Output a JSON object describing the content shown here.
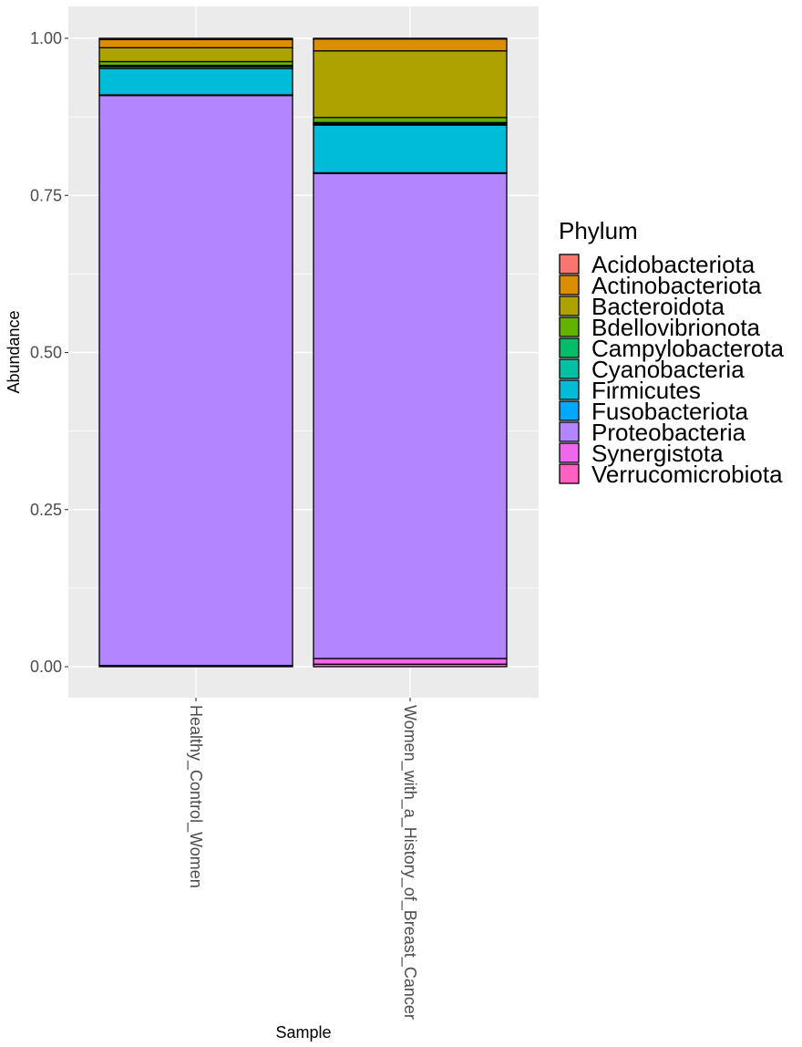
{
  "chart_data": {
    "type": "bar",
    "stacked": true,
    "xlabel": "Sample",
    "ylabel": "Abundance",
    "ylim": [
      -0.05,
      1.05
    ],
    "y_ticks": [
      "0.00",
      "0.25",
      "0.50",
      "0.75",
      "1.00"
    ],
    "y_tick_values": [
      0,
      0.25,
      0.5,
      0.75,
      1.0
    ],
    "grid": true,
    "categories": [
      "Healthy_Control_Women",
      "Women_with_a_History_of_Breast_Cancer"
    ],
    "legend": {
      "title": "Phylum",
      "placement": "right"
    },
    "series": [
      {
        "name": "Verrucomicrobiota",
        "color": "#FF61C3",
        "values": [
          0.001,
          0.004
        ]
      },
      {
        "name": "Synergistota",
        "color": "#ED68ED",
        "values": [
          0.001,
          0.009
        ]
      },
      {
        "name": "Proteobacteria",
        "color": "#B385FF",
        "values": [
          0.907,
          0.772
        ]
      },
      {
        "name": "Fusobacteriota",
        "color": "#00A9FF",
        "values": [
          0.001,
          0.001
        ]
      },
      {
        "name": "Firmicutes",
        "color": "#00BCD8",
        "values": [
          0.042,
          0.076
        ]
      },
      {
        "name": "Cyanobacteria",
        "color": "#00C1A3",
        "values": [
          0.003,
          0.002
        ]
      },
      {
        "name": "Campylobacterota",
        "color": "#00BE67",
        "values": [
          0.002,
          0.002
        ]
      },
      {
        "name": "Bdellovibrionota",
        "color": "#64B200",
        "values": [
          0.006,
          0.008
        ]
      },
      {
        "name": "Bacteroidota",
        "color": "#AEA200",
        "values": [
          0.022,
          0.106
        ]
      },
      {
        "name": "Actinobacteriota",
        "color": "#DB8E00",
        "values": [
          0.013,
          0.019
        ]
      },
      {
        "name": "Acidobacteriota",
        "color": "#F8766D",
        "values": [
          0.002,
          0.001
        ]
      }
    ],
    "legend_order": [
      "Acidobacteriota",
      "Actinobacteriota",
      "Bacteroidota",
      "Bdellovibrionota",
      "Campylobacterota",
      "Cyanobacteria",
      "Firmicutes",
      "Fusobacteriota",
      "Proteobacteria",
      "Synergistota",
      "Verrucomicrobiota"
    ]
  }
}
